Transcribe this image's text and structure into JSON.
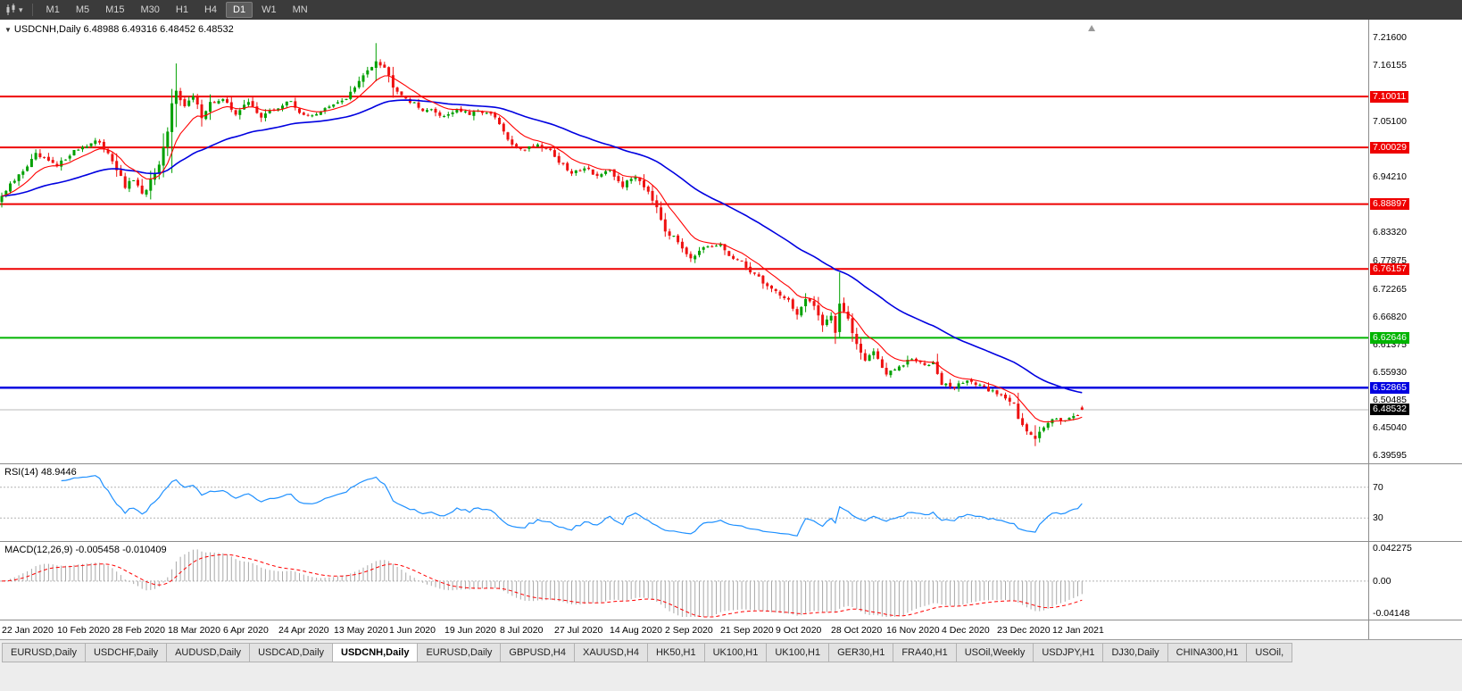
{
  "toolbar": {
    "timeframes": [
      "M1",
      "M5",
      "M15",
      "M30",
      "H1",
      "H4",
      "D1",
      "W1",
      "MN"
    ],
    "active_timeframe": "D1"
  },
  "header": {
    "symbol_label": "USDCNH,Daily",
    "ohlc": "6.48988 6.49316 6.48452 6.48532"
  },
  "main_chart": {
    "y_labels": [
      "7.21600",
      "7.16155",
      "7.05100",
      "6.94210",
      "6.83320",
      "6.77875",
      "6.72265",
      "6.66820",
      "6.61375",
      "6.55930",
      "6.50485",
      "6.45040",
      "6.39595"
    ],
    "current_price_label": "6.48532"
  },
  "rsi": {
    "label": "RSI(14)",
    "value": "48.9446",
    "upper_level": "70",
    "lower_level": "30"
  },
  "macd": {
    "label": "MACD(12,26,9)",
    "values": "-0.005458 -0.010409",
    "axis_top": "0.042275",
    "axis_zero": "0.00",
    "axis_bottom": "-0.04148"
  },
  "x_axis": {
    "dates": [
      "22 Jan 2020",
      "10 Feb 2020",
      "28 Feb 2020",
      "18 Mar 2020",
      "6 Apr 2020",
      "24 Apr 2020",
      "13 May 2020",
      "1 Jun 2020",
      "19 Jun 2020",
      "8 Jul 2020",
      "27 Jul 2020",
      "14 Aug 2020",
      "2 Sep 2020",
      "21 Sep 2020",
      "9 Oct 2020",
      "28 Oct 2020",
      "16 Nov 2020",
      "4 Dec 2020",
      "23 Dec 2020",
      "12 Jan 2021"
    ]
  },
  "tabs": {
    "items": [
      "EURUSD,Daily",
      "USDCHF,Daily",
      "AUDUSD,Daily",
      "USDCAD,Daily",
      "USDCNH,Daily",
      "EURUSD,Daily",
      "GBPUSD,H4",
      "XAUUSD,H4",
      "HK50,H1",
      "UK100,H1",
      "UK100,H1",
      "GER30,H1",
      "FRA40,H1",
      "USOil,Weekly",
      "USDJPY,H1",
      "DJ30,Daily",
      "CHINA300,H1",
      "USOil,"
    ],
    "active_index": 4
  },
  "colors": {
    "toolbar_bg": "#3b3b3b",
    "candle_up": "#00a000",
    "candle_down": "#ee1111",
    "ma_fast": "#ff0000",
    "ma_slow": "#0000e0",
    "rsi": "#1e90ff",
    "macd_hist": "#a8a8a8",
    "macd_signal": "#ff0000",
    "bid_line": "#b8b8b8",
    "tag_current_bg": "#000000"
  },
  "chart_data": {
    "type": "candlestick",
    "title": "USDCNH,Daily",
    "symbol": "USDCNH",
    "timeframe": "Daily",
    "last_bar": {
      "open": 6.48988,
      "high": 6.49316,
      "low": 6.48452,
      "close": 6.48532
    },
    "price_range": [
      6.39595,
      7.216
    ],
    "bar_count": 255,
    "bars_per_date_label": 13,
    "date_labels": [
      "22 Jan 2020",
      "10 Feb 2020",
      "28 Feb 2020",
      "18 Mar 2020",
      "6 Apr 2020",
      "24 Apr 2020",
      "13 May 2020",
      "1 Jun 2020",
      "19 Jun 2020",
      "8 Jul 2020",
      "27 Jul 2020",
      "14 Aug 2020",
      "2 Sep 2020",
      "21 Sep 2020",
      "9 Oct 2020",
      "28 Oct 2020",
      "16 Nov 2020",
      "4 Dec 2020",
      "23 Dec 2020",
      "12 Jan 2021"
    ],
    "levels": [
      {
        "price": 7.10011,
        "label": "7.10011",
        "color": "#ee0000",
        "width": 2
      },
      {
        "price": 7.00029,
        "label": "7.00029",
        "color": "#ee0000",
        "width": 2
      },
      {
        "price": 6.88897,
        "label": "6.88897",
        "color": "#ee0000",
        "width": 2
      },
      {
        "price": 6.76157,
        "label": "6.76157",
        "color": "#ee0000",
        "width": 2
      },
      {
        "price": 6.62646,
        "label": "6.62646",
        "color": "#00b400",
        "width": 2
      },
      {
        "price": 6.52865,
        "label": "6.52865",
        "color": "#0000e0",
        "width": 2.5
      }
    ],
    "bid_price": 6.48532,
    "close_anchors": [
      [
        0,
        6.905
      ],
      [
        2,
        6.925
      ],
      [
        5,
        6.955
      ],
      [
        8,
        6.985
      ],
      [
        11,
        6.972
      ],
      [
        13,
        6.962
      ],
      [
        16,
        6.988
      ],
      [
        19,
        7.002
      ],
      [
        22,
        7.012
      ],
      [
        25,
        6.992
      ],
      [
        27,
        6.958
      ],
      [
        29,
        6.922
      ],
      [
        31,
        6.938
      ],
      [
        33,
        6.906
      ],
      [
        35,
        6.934
      ],
      [
        37,
        6.962
      ],
      [
        39,
        7.03
      ],
      [
        40,
        7.085
      ],
      [
        41,
        7.115
      ],
      [
        43,
        7.08
      ],
      [
        45,
        7.1
      ],
      [
        47,
        7.062
      ],
      [
        49,
        7.088
      ],
      [
        52,
        7.092
      ],
      [
        55,
        7.068
      ],
      [
        58,
        7.088
      ],
      [
        61,
        7.062
      ],
      [
        65,
        7.078
      ],
      [
        68,
        7.092
      ],
      [
        71,
        7.06
      ],
      [
        74,
        7.068
      ],
      [
        78,
        7.082
      ],
      [
        81,
        7.098
      ],
      [
        84,
        7.128
      ],
      [
        86,
        7.152
      ],
      [
        88,
        7.172
      ],
      [
        90,
        7.158
      ],
      [
        92,
        7.122
      ],
      [
        95,
        7.098
      ],
      [
        98,
        7.078
      ],
      [
        101,
        7.072
      ],
      [
        104,
        7.062
      ],
      [
        107,
        7.076
      ],
      [
        110,
        7.064
      ],
      [
        113,
        7.072
      ],
      [
        116,
        7.058
      ],
      [
        118,
        7.03
      ],
      [
        120,
        7.002
      ],
      [
        123,
        6.998
      ],
      [
        126,
        7.006
      ],
      [
        129,
        6.995
      ],
      [
        131,
        6.972
      ],
      [
        134,
        6.948
      ],
      [
        137,
        6.962
      ],
      [
        140,
        6.945
      ],
      [
        143,
        6.952
      ],
      [
        146,
        6.925
      ],
      [
        149,
        6.945
      ],
      [
        152,
        6.915
      ],
      [
        154,
        6.885
      ],
      [
        156,
        6.838
      ],
      [
        159,
        6.815
      ],
      [
        162,
        6.785
      ],
      [
        165,
        6.8
      ],
      [
        169,
        6.808
      ],
      [
        171,
        6.788
      ],
      [
        174,
        6.772
      ],
      [
        177,
        6.752
      ],
      [
        180,
        6.728
      ],
      [
        182,
        6.718
      ],
      [
        185,
        6.7
      ],
      [
        187,
        6.672
      ],
      [
        189,
        6.7
      ],
      [
        191,
        6.688
      ],
      [
        193,
        6.655
      ],
      [
        195,
        6.672
      ],
      [
        196,
        6.638
      ],
      [
        197,
        6.695
      ],
      [
        199,
        6.66
      ],
      [
        201,
        6.615
      ],
      [
        203,
        6.585
      ],
      [
        205,
        6.6
      ],
      [
        208,
        6.555
      ],
      [
        211,
        6.568
      ],
      [
        214,
        6.585
      ],
      [
        217,
        6.572
      ],
      [
        219,
        6.582
      ],
      [
        221,
        6.538
      ],
      [
        224,
        6.528
      ],
      [
        227,
        6.545
      ],
      [
        230,
        6.53
      ],
      [
        233,
        6.522
      ],
      [
        234,
        6.518
      ],
      [
        236,
        6.508
      ],
      [
        238,
        6.502
      ],
      [
        239,
        6.47
      ],
      [
        241,
        6.44
      ],
      [
        243,
        6.428
      ],
      [
        245,
        6.455
      ],
      [
        247,
        6.47
      ],
      [
        249,
        6.462
      ],
      [
        251,
        6.472
      ],
      [
        253,
        6.478
      ],
      [
        254,
        6.485
      ]
    ],
    "special_bars": [
      [
        40,
        7.115,
        6.95
      ],
      [
        41,
        7.165,
        7.04
      ],
      [
        88,
        7.205,
        7.13
      ],
      [
        197,
        6.755,
        6.628
      ],
      [
        243,
        6.455,
        6.414
      ]
    ],
    "indicators": {
      "rsi": {
        "label": "RSI(14)",
        "current": 48.9446,
        "levels": [
          70,
          30
        ]
      },
      "macd": {
        "label": "MACD(12,26,9)",
        "macd_current": -0.005458,
        "signal_current": -0.010409,
        "scale_max": 0.042275,
        "scale_min": -0.04148
      },
      "ma_fast_color": "#ff0000",
      "ma_slow_color": "#0000e0"
    }
  }
}
